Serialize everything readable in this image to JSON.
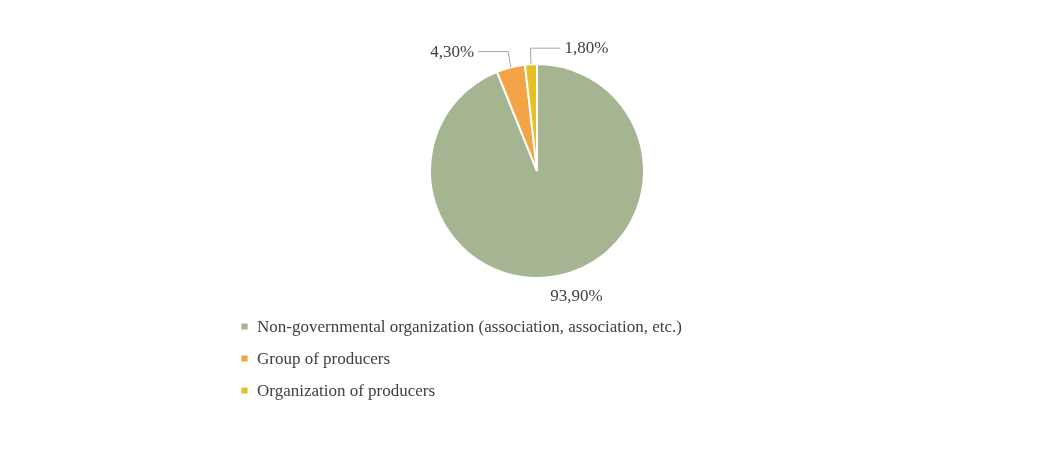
{
  "chart_data": {
    "type": "pie",
    "categories": [
      "Non-governmental organization (association, association, etc.)",
      "Group of producers",
      "Organization of producers"
    ],
    "values": [
      93.9,
      4.3,
      1.8
    ],
    "colors": [
      "#a5b592",
      "#f3a447",
      "#e7bf27"
    ],
    "value_labels": [
      "93,90%",
      "4,30%",
      "1,80%"
    ],
    "legend": "bottom"
  }
}
